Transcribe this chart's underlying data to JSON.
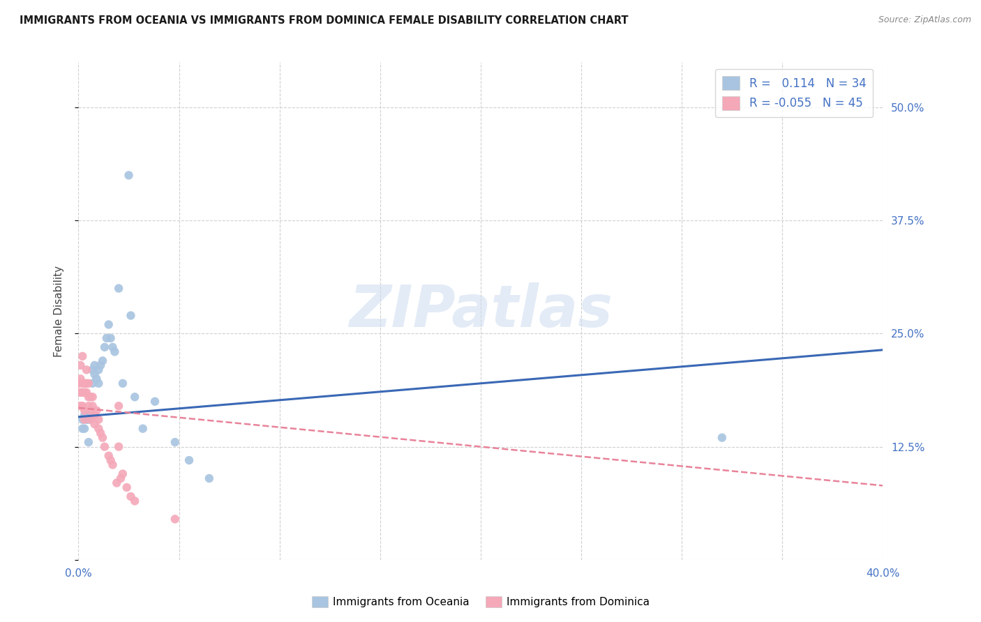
{
  "title": "IMMIGRANTS FROM OCEANIA VS IMMIGRANTS FROM DOMINICA FEMALE DISABILITY CORRELATION CHART",
  "source": "Source: ZipAtlas.com",
  "ylabel": "Female Disability",
  "y_ticks": [
    0.0,
    0.125,
    0.25,
    0.375,
    0.5
  ],
  "y_tick_labels": [
    "",
    "12.5%",
    "25.0%",
    "37.5%",
    "50.0%"
  ],
  "x_ticks": [
    0.0,
    0.05,
    0.1,
    0.15,
    0.2,
    0.25,
    0.3,
    0.35,
    0.4
  ],
  "x_tick_labels": [
    "0.0%",
    "",
    "",
    "",
    "",
    "",
    "",
    "",
    "40.0%"
  ],
  "x_range": [
    0.0,
    0.4
  ],
  "y_range": [
    0.0,
    0.55
  ],
  "oceania_R": 0.114,
  "oceania_N": 34,
  "dominica_R": -0.055,
  "dominica_N": 45,
  "oceania_color": "#a8c4e0",
  "dominica_color": "#f4a8b8",
  "trendline_oceania_color": "#3a68b5",
  "trendline_dominica_color": "#e8839a",
  "watermark_text": "ZIPatlas",
  "background_color": "#ffffff",
  "oceania_x": [
    0.002,
    0.002,
    0.003,
    0.003,
    0.004,
    0.005,
    0.005,
    0.006,
    0.007,
    0.007,
    0.008,
    0.008,
    0.009,
    0.01,
    0.01,
    0.011,
    0.012,
    0.013,
    0.014,
    0.015,
    0.016,
    0.017,
    0.018,
    0.02,
    0.022,
    0.025,
    0.026,
    0.028,
    0.032,
    0.038,
    0.048,
    0.055,
    0.065,
    0.32
  ],
  "oceania_y": [
    0.155,
    0.145,
    0.16,
    0.145,
    0.155,
    0.155,
    0.13,
    0.16,
    0.21,
    0.195,
    0.215,
    0.205,
    0.2,
    0.21,
    0.195,
    0.215,
    0.22,
    0.235,
    0.245,
    0.26,
    0.245,
    0.235,
    0.23,
    0.3,
    0.195,
    0.425,
    0.27,
    0.18,
    0.145,
    0.175,
    0.13,
    0.11,
    0.09,
    0.135
  ],
  "dominica_x": [
    0.0,
    0.0,
    0.001,
    0.001,
    0.001,
    0.001,
    0.002,
    0.002,
    0.002,
    0.002,
    0.003,
    0.003,
    0.003,
    0.003,
    0.004,
    0.004,
    0.004,
    0.005,
    0.005,
    0.005,
    0.006,
    0.006,
    0.006,
    0.007,
    0.007,
    0.008,
    0.008,
    0.009,
    0.01,
    0.01,
    0.011,
    0.012,
    0.013,
    0.015,
    0.016,
    0.017,
    0.019,
    0.02,
    0.02,
    0.021,
    0.022,
    0.024,
    0.026,
    0.028,
    0.048
  ],
  "dominica_y": [
    0.195,
    0.185,
    0.215,
    0.2,
    0.185,
    0.17,
    0.225,
    0.195,
    0.185,
    0.17,
    0.195,
    0.185,
    0.165,
    0.155,
    0.21,
    0.195,
    0.185,
    0.195,
    0.18,
    0.17,
    0.18,
    0.165,
    0.155,
    0.18,
    0.17,
    0.16,
    0.15,
    0.165,
    0.155,
    0.145,
    0.14,
    0.135,
    0.125,
    0.115,
    0.11,
    0.105,
    0.085,
    0.17,
    0.125,
    0.09,
    0.095,
    0.08,
    0.07,
    0.065,
    0.045
  ],
  "oceania_trendline_x0": 0.0,
  "oceania_trendline_x1": 0.4,
  "oceania_trendline_y0": 0.158,
  "oceania_trendline_y1": 0.232,
  "dominica_trendline_x0": 0.0,
  "dominica_trendline_x1": 0.4,
  "dominica_trendline_y0": 0.168,
  "dominica_trendline_y1": 0.082
}
